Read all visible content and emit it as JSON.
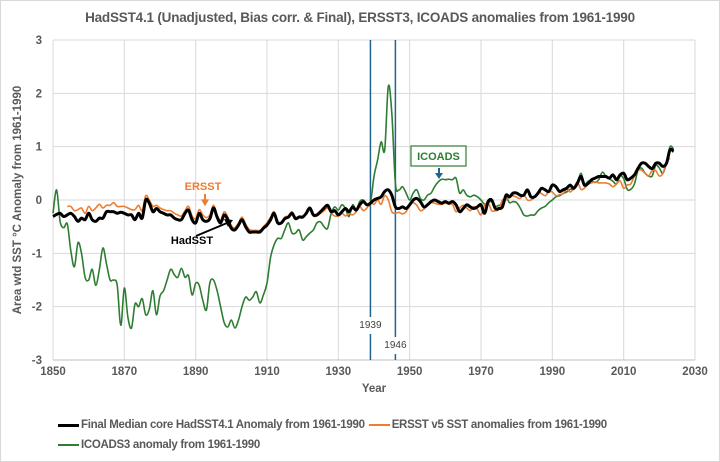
{
  "chart_data": {
    "type": "line",
    "title": "HadSST4.1 (Unadjusted, Bias corr. & Final), ERSST3, ICOADS anomalies from 1961-1990",
    "xlabel": "Year",
    "ylabel": "Area wtd SST °C Anomaly from 1961-1990",
    "xlim": [
      1850,
      2030
    ],
    "ylim": [
      -3,
      3
    ],
    "x_ticks": [
      1850,
      1870,
      1890,
      1910,
      1930,
      1950,
      1970,
      1990,
      2010,
      2030
    ],
    "y_ticks": [
      -3,
      -2,
      -1,
      0,
      1,
      2,
      3
    ],
    "grid": true,
    "legend_position": "bottom",
    "series": [
      {
        "name": "Final Median core HadSST4.1 Anomaly from 1961-1990",
        "color": "#000000",
        "start_year": 1850,
        "values": [
          -0.31,
          -0.27,
          -0.25,
          -0.31,
          -0.28,
          -0.25,
          -0.31,
          -0.4,
          -0.34,
          -0.37,
          -0.25,
          -0.37,
          -0.4,
          -0.34,
          -0.34,
          -0.22,
          -0.22,
          -0.22,
          -0.25,
          -0.23,
          -0.25,
          -0.28,
          -0.28,
          -0.37,
          -0.25,
          -0.34,
          0.0,
          -0.06,
          -0.22,
          -0.16,
          -0.22,
          -0.25,
          -0.28,
          -0.28,
          -0.34,
          -0.37,
          -0.37,
          -0.25,
          -0.19,
          -0.37,
          -0.43,
          -0.25,
          -0.37,
          -0.4,
          -0.35,
          -0.15,
          -0.32,
          -0.43,
          -0.28,
          -0.37,
          -0.53,
          -0.56,
          -0.47,
          -0.37,
          -0.5,
          -0.6,
          -0.6,
          -0.6,
          -0.6,
          -0.53,
          -0.47,
          -0.37,
          -0.25,
          -0.43,
          -0.43,
          -0.35,
          -0.32,
          -0.25,
          -0.35,
          -0.32,
          -0.32,
          -0.25,
          -0.15,
          -0.28,
          -0.28,
          -0.22,
          -0.15,
          -0.1,
          -0.22,
          -0.2,
          -0.28,
          -0.22,
          -0.16,
          -0.22,
          -0.13,
          -0.19,
          -0.09,
          -0.03,
          -0.09,
          -0.06,
          0.0,
          0.03,
          0.06,
          0.16,
          0.19,
          0.09,
          -0.13,
          -0.16,
          -0.13,
          -0.16,
          -0.09,
          0.0,
          0.03,
          -0.03,
          -0.13,
          -0.09,
          -0.03,
          0.0,
          -0.03,
          -0.06,
          -0.03,
          -0.06,
          -0.03,
          -0.09,
          -0.22,
          -0.16,
          -0.09,
          -0.13,
          -0.16,
          -0.13,
          -0.09,
          -0.25,
          -0.03,
          0.0,
          -0.16,
          -0.16,
          -0.13,
          0.09,
          0.06,
          0.13,
          0.13,
          0.09,
          0.09,
          0.19,
          0.06,
          0.06,
          0.13,
          0.22,
          0.19,
          0.16,
          0.28,
          0.25,
          0.16,
          0.19,
          0.22,
          0.28,
          0.22,
          0.31,
          0.44,
          0.28,
          0.31,
          0.38,
          0.41,
          0.44,
          0.44,
          0.44,
          0.41,
          0.47,
          0.38,
          0.47,
          0.5,
          0.38,
          0.41,
          0.47,
          0.59,
          0.69,
          0.69,
          0.63,
          0.59,
          0.69,
          0.69,
          0.63,
          0.69,
          0.94,
          0.91
        ]
      },
      {
        "name": "ERSST v5 SST anomalies from 1961-1990",
        "color": "#ed7d31",
        "start_year": 1854,
        "values": [
          -0.12,
          -0.12,
          -0.2,
          -0.18,
          -0.15,
          -0.25,
          -0.12,
          -0.2,
          -0.15,
          -0.08,
          -0.15,
          -0.1,
          -0.1,
          -0.05,
          -0.12,
          -0.12,
          -0.12,
          -0.15,
          -0.18,
          -0.18,
          -0.1,
          -0.2,
          0.08,
          0.0,
          -0.12,
          -0.1,
          -0.15,
          -0.18,
          -0.2,
          -0.2,
          -0.25,
          -0.28,
          -0.3,
          -0.2,
          -0.12,
          -0.3,
          -0.35,
          -0.18,
          -0.28,
          -0.33,
          -0.28,
          -0.1,
          -0.28,
          -0.38,
          -0.22,
          -0.32,
          -0.48,
          -0.52,
          -0.43,
          -0.32,
          -0.45,
          -0.55,
          -0.57,
          -0.57,
          -0.57,
          -0.5,
          -0.43,
          -0.32,
          -0.22,
          -0.4,
          -0.42,
          -0.32,
          -0.3,
          -0.22,
          -0.33,
          -0.3,
          -0.3,
          -0.25,
          -0.18,
          -0.3,
          -0.3,
          -0.25,
          -0.2,
          -0.15,
          -0.25,
          -0.3,
          -0.3,
          -0.25,
          -0.3,
          -0.25,
          -0.28,
          -0.22,
          -0.12,
          -0.2,
          -0.15,
          -0.05,
          -0.08,
          0.0,
          -0.08,
          0.08,
          0.0,
          -0.22,
          -0.25,
          -0.23,
          -0.26,
          -0.22,
          -0.1,
          -0.05,
          -0.1,
          -0.2,
          -0.17,
          -0.1,
          -0.05,
          -0.06,
          -0.08,
          -0.08,
          -0.06,
          -0.08,
          -0.08,
          -0.22,
          -0.15,
          -0.1,
          -0.15,
          -0.2,
          -0.12,
          -0.18,
          -0.28,
          -0.1,
          -0.05,
          -0.2,
          -0.2,
          -0.18,
          0.0,
          0.0,
          0.05,
          0.08,
          0.05,
          0.03,
          0.1,
          0.0,
          0.0,
          0.05,
          0.15,
          0.12,
          0.08,
          0.15,
          0.15,
          0.08,
          0.1,
          0.12,
          0.2,
          0.15,
          0.22,
          0.34,
          0.2,
          0.22,
          0.3,
          0.32,
          0.34,
          0.32,
          0.32,
          0.32,
          0.3,
          0.25,
          0.3,
          0.36,
          0.22,
          0.28,
          0.3,
          0.45,
          0.55,
          0.56,
          0.5,
          0.45,
          0.55,
          0.55,
          0.45,
          0.5,
          0.72,
          0.78
        ]
      },
      {
        "name": "ICOADS3 anomaly from 1961-1990",
        "color": "#2e7d32",
        "start_year": 1850,
        "values": [
          -0.25,
          0.19,
          -0.4,
          -0.52,
          -0.45,
          -0.95,
          -1.25,
          -0.8,
          -1.0,
          -1.45,
          -1.5,
          -1.3,
          -1.6,
          -1.3,
          -0.9,
          -1.2,
          -1.5,
          -1.5,
          -1.6,
          -2.35,
          -1.65,
          -2.2,
          -2.4,
          -1.95,
          -2.0,
          -1.85,
          -2.15,
          -2.05,
          -1.7,
          -2.15,
          -1.8,
          -1.7,
          -1.5,
          -1.3,
          -1.4,
          -1.45,
          -1.28,
          -1.45,
          -1.42,
          -1.78,
          -1.56,
          -1.6,
          -1.88,
          -2.06,
          -1.55,
          -1.5,
          -1.7,
          -2.0,
          -2.3,
          -2.38,
          -2.25,
          -2.4,
          -2.25,
          -2.0,
          -1.82,
          -1.88,
          -1.82,
          -1.72,
          -1.93,
          -1.78,
          -1.56,
          -1.07,
          -0.84,
          -0.72,
          -0.72,
          -0.56,
          -0.43,
          -0.62,
          -0.62,
          -0.56,
          -0.75,
          -0.69,
          -0.62,
          -0.56,
          -0.43,
          -0.41,
          -0.5,
          -0.53,
          -0.25,
          -0.13,
          -0.19,
          -0.09,
          -0.16,
          -0.31,
          -0.09,
          -0.19,
          -0.03,
          0.0,
          -0.09,
          -0.06,
          0.44,
          0.75,
          1.09,
          0.94,
          2.13,
          1.63,
          0.31,
          0.19,
          0.25,
          0.13,
          0.0,
          0.13,
          0.19,
          0.03,
          0.0,
          0.09,
          0.13,
          0.25,
          0.34,
          0.39,
          0.38,
          0.39,
          0.38,
          0.41,
          0.13,
          0.19,
          0.09,
          0.06,
          0.09,
          0.06,
          0.0,
          -0.08,
          -0.05,
          -0.03,
          -0.12,
          -0.1,
          -0.08,
          0.06,
          -0.05,
          -0.03,
          -0.05,
          -0.15,
          -0.28,
          -0.3,
          -0.28,
          -0.28,
          -0.2,
          -0.15,
          -0.12,
          -0.05,
          0.0,
          0.06,
          0.08,
          0.12,
          0.15,
          0.2,
          0.2,
          0.3,
          0.5,
          0.3,
          0.35,
          0.36,
          0.33,
          0.38,
          0.52,
          0.45,
          0.4,
          0.35,
          0.3,
          0.45,
          0.4,
          0.2,
          0.2,
          0.3,
          0.55,
          0.6,
          0.5,
          0.45,
          0.45,
          0.65,
          0.6,
          0.5,
          0.7,
          1.0,
          0.95
        ]
      }
    ],
    "vertical_markers": [
      {
        "year": 1939,
        "label": "1939",
        "color": "#1f6391"
      },
      {
        "year": 1946,
        "label": "1946",
        "color": "#1f6391"
      }
    ],
    "annotations": [
      {
        "text": "ERSST",
        "color": "#ed7d31",
        "arrow_to": {
          "year": 1892,
          "value": -0.12
        }
      },
      {
        "text": "HadSST",
        "color": "#000000",
        "arrow_to": {
          "year": 1894,
          "value": -0.33
        }
      },
      {
        "text": "ICOADS",
        "color": "#2e7d32",
        "boxed": true,
        "arrow_color": "#1f6391",
        "arrow_to": {
          "year": 1961,
          "value": 0.42
        }
      }
    ]
  }
}
